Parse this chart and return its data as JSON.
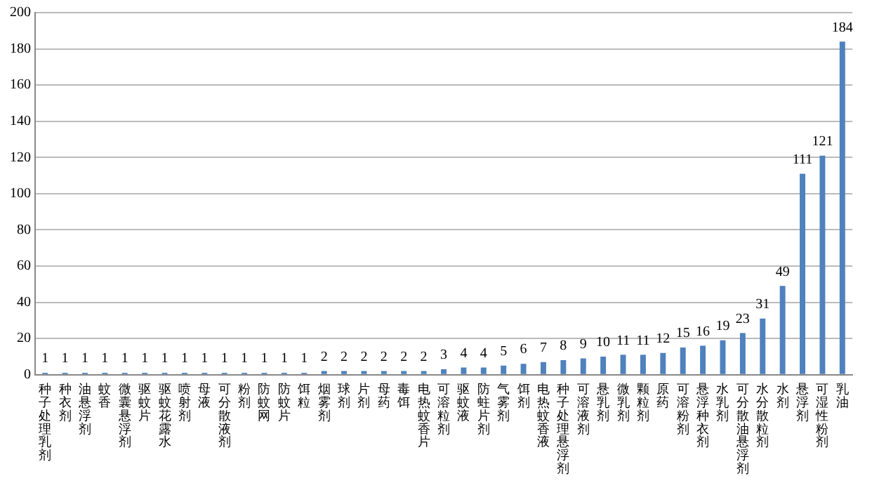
{
  "chart_data": {
    "type": "bar",
    "categories": [
      "种子处理乳剂",
      "种衣剂",
      "油悬浮剂",
      "蚊香",
      "微囊悬浮剂",
      "驱蚊片",
      "驱蚊花露水",
      "喷射剂",
      "母液",
      "可分散液剂",
      "粉剂",
      "防蚊网",
      "防蚊片",
      "饵粒",
      "烟雾剂",
      "球剂",
      "片剂",
      "母药",
      "毒饵",
      "电热蚊香片",
      "可溶粒剂",
      "驱蚊液",
      "防蛀片剂",
      "气雾剂",
      "饵剂",
      "电热蚊香液",
      "种子处理悬浮剂",
      "可溶液剂",
      "悬乳剂",
      "微乳剂",
      "颗粒剂",
      "原药",
      "可溶粉剂",
      "悬浮种衣剂",
      "水乳剂",
      "可分散油悬浮剂",
      "水分散粒剂",
      "水剂",
      "悬浮剂",
      "可湿性粉剂",
      "乳油"
    ],
    "values": [
      1,
      1,
      1,
      1,
      1,
      1,
      1,
      1,
      1,
      1,
      1,
      1,
      1,
      1,
      2,
      2,
      2,
      2,
      2,
      2,
      3,
      4,
      4,
      5,
      6,
      7,
      8,
      9,
      10,
      11,
      11,
      12,
      15,
      16,
      19,
      23,
      31,
      49,
      111,
      121,
      184
    ],
    "color": "#4f81bd",
    "ylim": [
      0,
      200
    ],
    "yticks": [
      0,
      20,
      40,
      60,
      80,
      100,
      120,
      140,
      160,
      180,
      200
    ],
    "grid": "y",
    "legend": false,
    "data_labels": true
  }
}
